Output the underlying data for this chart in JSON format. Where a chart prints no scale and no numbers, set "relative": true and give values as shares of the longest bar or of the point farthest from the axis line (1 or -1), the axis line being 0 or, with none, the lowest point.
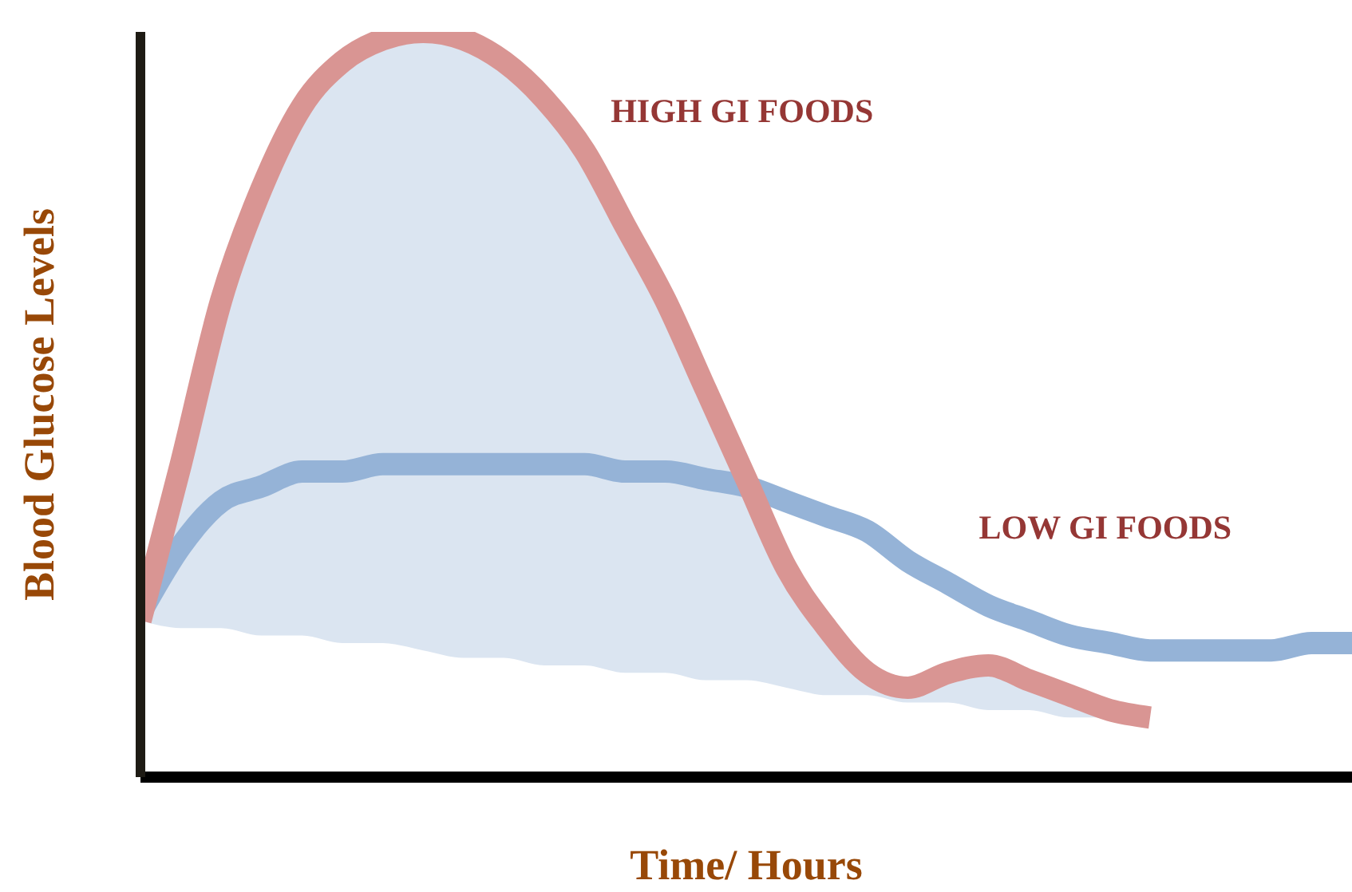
{
  "chart_data": {
    "type": "line",
    "relative": true,
    "xlabel": "Time/ Hours",
    "ylabel": "Blood Glucose Levels",
    "categories": [
      null,
      null,
      null,
      null,
      null,
      null,
      null,
      null,
      null,
      null,
      null,
      null,
      null,
      null,
      null,
      null,
      null,
      null,
      null,
      null,
      null,
      null,
      null,
      null,
      null,
      null,
      null,
      null,
      null,
      null,
      null
    ],
    "series": [
      {
        "name": "HIGH GI FOODS",
        "color": "#d99593",
        "values": [
          0.21,
          0.42,
          0.64,
          0.79,
          0.9,
          0.96,
          0.99,
          1.0,
          0.99,
          0.96,
          0.91,
          0.84,
          0.74,
          0.64,
          0.52,
          0.4,
          0.28,
          0.2,
          0.14,
          0.12,
          0.14,
          0.15,
          0.13,
          0.11,
          0.09,
          0.08,
          null,
          null,
          null,
          null,
          null
        ],
        "lower": [
          0.21,
          0.2,
          0.2,
          0.19,
          0.19,
          0.18,
          0.18,
          0.17,
          0.16,
          0.16,
          0.15,
          0.15,
          0.14,
          0.14,
          0.13,
          0.13,
          0.12,
          0.11,
          0.11,
          0.1,
          0.1,
          0.09,
          0.09,
          0.08,
          0.08,
          0.08,
          null,
          null,
          null,
          null,
          null
        ],
        "upper": [
          0.21,
          0.42,
          0.64,
          0.79,
          0.9,
          0.96,
          0.99,
          1.0,
          0.99,
          0.96,
          0.91,
          0.84,
          0.74,
          0.64,
          0.52,
          0.4,
          0.28,
          0.2,
          0.14,
          0.12,
          0.14,
          0.15,
          0.13,
          0.11,
          0.09,
          0.08,
          null,
          null,
          null,
          null,
          null
        ]
      },
      {
        "name": "LOW GI FOODS",
        "color": "#95b3d7",
        "values": [
          0.22,
          0.31,
          0.37,
          0.39,
          0.41,
          0.41,
          0.42,
          0.42,
          0.42,
          0.42,
          0.42,
          0.42,
          0.41,
          0.41,
          0.4,
          0.39,
          0.37,
          0.35,
          0.33,
          0.29,
          0.26,
          0.23,
          0.21,
          0.19,
          0.18,
          0.17,
          0.17,
          0.17,
          0.17,
          0.18,
          0.18
        ]
      }
    ]
  }
}
